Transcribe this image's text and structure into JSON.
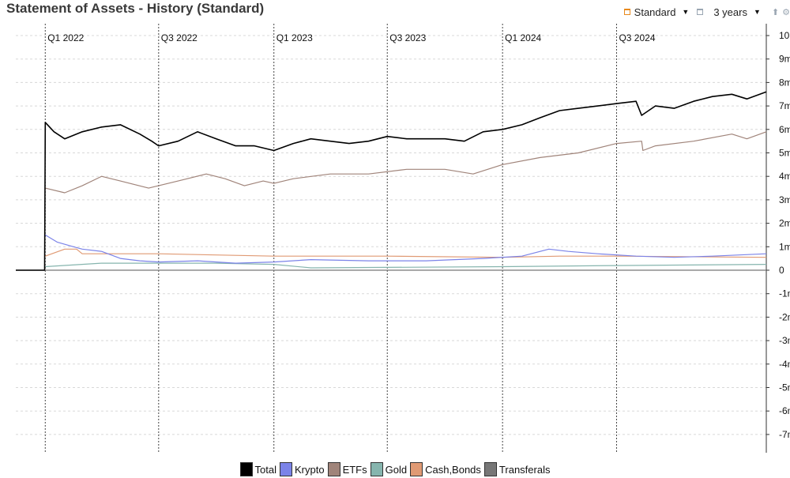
{
  "header": {
    "title": "Statement of Assets - History (Standard)",
    "view_select": "Standard",
    "period_select": "3 years"
  },
  "chart_data": {
    "type": "line",
    "title": "Statement of Assets - History (Standard)",
    "xlabel": "",
    "ylabel": "",
    "x_range": [
      "2021-11-15",
      "2025-02-25"
    ],
    "ylim": [
      -7.5,
      10
    ],
    "y_ticks": [
      10,
      9,
      8,
      7,
      6,
      5,
      4,
      3,
      2,
      1,
      0,
      -1,
      -2,
      -3,
      -4,
      -5,
      -6,
      -7
    ],
    "y_tick_labels": [
      "10",
      "9m",
      "8m",
      "7m",
      "6m",
      "5m",
      "4m",
      "3m",
      "2m",
      "1m",
      "0",
      "-1m",
      "-2m",
      "-3m",
      "-4m",
      "-5m",
      "-6m",
      "-7m"
    ],
    "quarter_marks": [
      {
        "date": "2022-01-01",
        "label": "Q1 2022"
      },
      {
        "date": "2022-07-01",
        "label": "Q3 2022"
      },
      {
        "date": "2023-01-01",
        "label": "Q1 2023"
      },
      {
        "date": "2023-07-01",
        "label": "Q3 2023"
      },
      {
        "date": "2024-01-01",
        "label": "Q1 2024"
      },
      {
        "date": "2024-07-01",
        "label": "Q3 2024"
      }
    ],
    "grid": true,
    "legend_position": "bottom",
    "series": [
      {
        "name": "Total",
        "color": "#000000",
        "points": [
          [
            "2021-11-15",
            0
          ],
          [
            "2021-12-31",
            0
          ],
          [
            "2022-01-01",
            6.3
          ],
          [
            "2022-01-15",
            5.9
          ],
          [
            "2022-02-01",
            5.6
          ],
          [
            "2022-03-01",
            5.9
          ],
          [
            "2022-04-01",
            6.1
          ],
          [
            "2022-05-01",
            6.2
          ],
          [
            "2022-06-01",
            5.8
          ],
          [
            "2022-06-20",
            5.5
          ],
          [
            "2022-07-01",
            5.3
          ],
          [
            "2022-08-01",
            5.5
          ],
          [
            "2022-09-01",
            5.9
          ],
          [
            "2022-10-01",
            5.6
          ],
          [
            "2022-11-01",
            5.3
          ],
          [
            "2022-12-01",
            5.3
          ],
          [
            "2023-01-01",
            5.1
          ],
          [
            "2023-02-01",
            5.4
          ],
          [
            "2023-03-01",
            5.6
          ],
          [
            "2023-04-01",
            5.5
          ],
          [
            "2023-05-01",
            5.4
          ],
          [
            "2023-06-01",
            5.5
          ],
          [
            "2023-07-01",
            5.7
          ],
          [
            "2023-08-01",
            5.6
          ],
          [
            "2023-09-01",
            5.6
          ],
          [
            "2023-10-01",
            5.6
          ],
          [
            "2023-11-01",
            5.5
          ],
          [
            "2023-12-01",
            5.9
          ],
          [
            "2024-01-01",
            6.0
          ],
          [
            "2024-02-01",
            6.2
          ],
          [
            "2024-03-01",
            6.5
          ],
          [
            "2024-04-01",
            6.8
          ],
          [
            "2024-05-01",
            6.9
          ],
          [
            "2024-06-01",
            7.0
          ],
          [
            "2024-07-01",
            7.1
          ],
          [
            "2024-08-01",
            7.2
          ],
          [
            "2024-08-10",
            6.6
          ],
          [
            "2024-09-01",
            7.0
          ],
          [
            "2024-10-01",
            6.9
          ],
          [
            "2024-11-01",
            7.2
          ],
          [
            "2024-12-01",
            7.4
          ],
          [
            "2025-01-01",
            7.5
          ],
          [
            "2025-01-25",
            7.3
          ],
          [
            "2025-02-25",
            7.6
          ]
        ]
      },
      {
        "name": "Krypto",
        "color": "#7b83e8",
        "points": [
          [
            "2022-01-01",
            1.5
          ],
          [
            "2022-01-20",
            1.2
          ],
          [
            "2022-02-15",
            1.0
          ],
          [
            "2022-03-01",
            0.9
          ],
          [
            "2022-04-01",
            0.8
          ],
          [
            "2022-05-01",
            0.5
          ],
          [
            "2022-06-01",
            0.4
          ],
          [
            "2022-07-01",
            0.35
          ],
          [
            "2022-09-01",
            0.4
          ],
          [
            "2022-11-01",
            0.3
          ],
          [
            "2023-01-01",
            0.35
          ],
          [
            "2023-03-01",
            0.45
          ],
          [
            "2023-06-01",
            0.4
          ],
          [
            "2023-09-01",
            0.4
          ],
          [
            "2023-12-01",
            0.5
          ],
          [
            "2024-02-01",
            0.6
          ],
          [
            "2024-03-15",
            0.9
          ],
          [
            "2024-04-15",
            0.8
          ],
          [
            "2024-06-01",
            0.7
          ],
          [
            "2024-08-01",
            0.6
          ],
          [
            "2024-10-01",
            0.55
          ],
          [
            "2024-12-01",
            0.6
          ],
          [
            "2025-02-25",
            0.7
          ]
        ]
      },
      {
        "name": "ETFs",
        "color": "#a0847a",
        "points": [
          [
            "2022-01-01",
            3.5
          ],
          [
            "2022-02-01",
            3.3
          ],
          [
            "2022-03-01",
            3.6
          ],
          [
            "2022-04-01",
            4.0
          ],
          [
            "2022-05-01",
            3.8
          ],
          [
            "2022-06-15",
            3.5
          ],
          [
            "2022-08-01",
            3.8
          ],
          [
            "2022-09-15",
            4.1
          ],
          [
            "2022-10-15",
            3.9
          ],
          [
            "2022-11-15",
            3.6
          ],
          [
            "2022-12-15",
            3.8
          ],
          [
            "2023-01-01",
            3.7
          ],
          [
            "2023-02-01",
            3.9
          ],
          [
            "2023-04-01",
            4.1
          ],
          [
            "2023-06-01",
            4.1
          ],
          [
            "2023-08-01",
            4.3
          ],
          [
            "2023-10-01",
            4.3
          ],
          [
            "2023-11-15",
            4.1
          ],
          [
            "2024-01-01",
            4.5
          ],
          [
            "2024-03-01",
            4.8
          ],
          [
            "2024-05-01",
            5.0
          ],
          [
            "2024-07-01",
            5.4
          ],
          [
            "2024-08-10",
            5.5
          ],
          [
            "2024-08-12",
            5.1
          ],
          [
            "2024-09-01",
            5.3
          ],
          [
            "2024-11-01",
            5.5
          ],
          [
            "2025-01-01",
            5.8
          ],
          [
            "2025-01-25",
            5.6
          ],
          [
            "2025-02-25",
            5.9
          ]
        ]
      },
      {
        "name": "Gold",
        "color": "#86b5ae",
        "points": [
          [
            "2022-01-01",
            0.15
          ],
          [
            "2022-04-01",
            0.3
          ],
          [
            "2022-07-01",
            0.3
          ],
          [
            "2022-10-01",
            0.3
          ],
          [
            "2023-01-01",
            0.25
          ],
          [
            "2023-03-01",
            0.1
          ],
          [
            "2023-07-01",
            0.12
          ],
          [
            "2024-01-01",
            0.15
          ],
          [
            "2024-07-01",
            0.2
          ],
          [
            "2025-02-25",
            0.25
          ]
        ]
      },
      {
        "name": "Cash,Bonds",
        "color": "#e09a74",
        "points": [
          [
            "2022-01-01",
            0.6
          ],
          [
            "2022-02-01",
            0.9
          ],
          [
            "2022-02-20",
            0.9
          ],
          [
            "2022-03-01",
            0.7
          ],
          [
            "2022-07-01",
            0.7
          ],
          [
            "2023-01-01",
            0.6
          ],
          [
            "2023-07-01",
            0.6
          ],
          [
            "2024-01-01",
            0.55
          ],
          [
            "2024-04-01",
            0.6
          ],
          [
            "2024-07-01",
            0.6
          ],
          [
            "2025-02-25",
            0.55
          ]
        ]
      },
      {
        "name": "Transferals",
        "color": "#777777",
        "points": [
          [
            "2021-11-15",
            0
          ],
          [
            "2025-02-25",
            0
          ]
        ]
      }
    ]
  }
}
